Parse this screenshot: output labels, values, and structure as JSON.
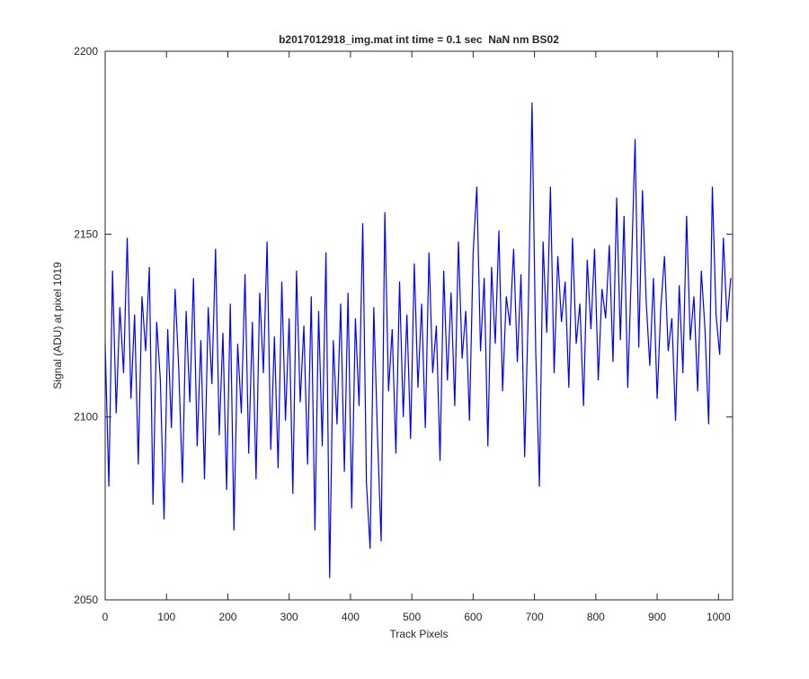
{
  "chart_data": {
    "type": "line",
    "title": "b2017012918_img.mat int time = 0.1 sec  NaN nm BS02",
    "xlabel": "Track Pixels",
    "ylabel": "Signal (ADU) at pixel 1019",
    "xlim": [
      0,
      1023
    ],
    "ylim": [
      2050,
      2200
    ],
    "xticks": [
      0,
      100,
      200,
      300,
      400,
      500,
      600,
      700,
      800,
      900,
      1000
    ],
    "yticks": [
      2050,
      2100,
      2150,
      2200
    ],
    "x": [
      0,
      6,
      12,
      18,
      24,
      30,
      36,
      42,
      48,
      54,
      60,
      66,
      72,
      78,
      84,
      90,
      96,
      102,
      108,
      114,
      120,
      126,
      132,
      138,
      144,
      150,
      156,
      162,
      168,
      174,
      180,
      186,
      192,
      198,
      204,
      210,
      216,
      222,
      228,
      234,
      240,
      246,
      252,
      258,
      264,
      270,
      276,
      282,
      288,
      294,
      300,
      306,
      312,
      318,
      324,
      330,
      336,
      342,
      348,
      354,
      360,
      366,
      372,
      378,
      384,
      390,
      396,
      402,
      408,
      414,
      420,
      426,
      432,
      438,
      444,
      450,
      456,
      462,
      468,
      474,
      480,
      486,
      492,
      498,
      504,
      510,
      516,
      522,
      528,
      534,
      540,
      546,
      552,
      558,
      564,
      570,
      576,
      582,
      588,
      594,
      600,
      606,
      612,
      618,
      624,
      630,
      636,
      642,
      648,
      654,
      660,
      666,
      672,
      678,
      684,
      690,
      696,
      702,
      708,
      714,
      720,
      726,
      732,
      738,
      744,
      750,
      756,
      762,
      768,
      774,
      780,
      786,
      792,
      798,
      804,
      810,
      816,
      822,
      828,
      834,
      840,
      846,
      852,
      858,
      864,
      870,
      876,
      882,
      888,
      894,
      900,
      906,
      912,
      918,
      924,
      930,
      936,
      942,
      948,
      954,
      960,
      966,
      972,
      978,
      984,
      990,
      996,
      1002,
      1008,
      1014,
      1020
    ],
    "series": [
      {
        "color": "#0000ff",
        "values": [
          2120,
          2081,
          2140,
          2101,
          2130,
          2112,
          2149,
          2105,
          2128,
          2087,
          2133,
          2118,
          2141,
          2076,
          2126,
          2110,
          2072,
          2124,
          2097,
          2135,
          2113,
          2082,
          2129,
          2104,
          2138,
          2092,
          2121,
          2083,
          2130,
          2109,
          2146,
          2095,
          2123,
          2080,
          2131,
          2069,
          2120,
          2101,
          2139,
          2090,
          2126,
          2083,
          2134,
          2112,
          2148,
          2091,
          2122,
          2086,
          2137,
          2099,
          2127,
          2079,
          2140,
          2104,
          2125,
          2087,
          2133,
          2069,
          2129,
          2092,
          2145,
          2056,
          2121,
          2098,
          2131,
          2085,
          2134,
          2075,
          2127,
          2103,
          2153,
          2082,
          2064,
          2130,
          2095,
          2066,
          2156,
          2107,
          2124,
          2090,
          2137,
          2100,
          2128,
          2094,
          2142,
          2108,
          2131,
          2097,
          2145,
          2112,
          2125,
          2088,
          2140,
          2110,
          2134,
          2103,
          2148,
          2116,
          2129,
          2099,
          2145,
          2163,
          2118,
          2138,
          2092,
          2141,
          2120,
          2151,
          2107,
          2133,
          2125,
          2146,
          2115,
          2139,
          2089,
          2130,
          2186,
          2118,
          2081,
          2148,
          2123,
          2163,
          2112,
          2144,
          2126,
          2137,
          2108,
          2149,
          2120,
          2131,
          2103,
          2143,
          2124,
          2146,
          2110,
          2135,
          2127,
          2147,
          2115,
          2160,
          2121,
          2155,
          2108,
          2140,
          2176,
          2119,
          2162,
          2132,
          2114,
          2138,
          2105,
          2130,
          2144,
          2118,
          2127,
          2099,
          2136,
          2112,
          2155,
          2121,
          2133,
          2107,
          2140,
          2124,
          2098,
          2163,
          2128,
          2117,
          2149,
          2126,
          2138
        ]
      }
    ]
  }
}
